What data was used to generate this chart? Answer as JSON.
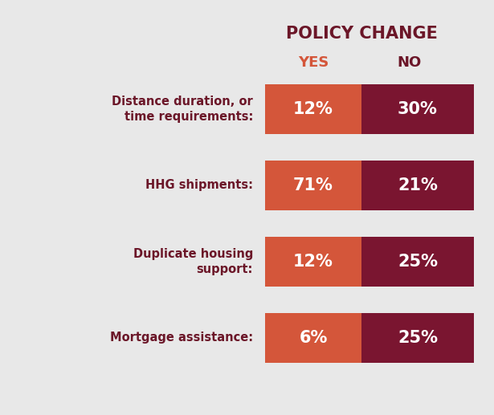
{
  "background_color": "#e8e8e8",
  "title_line1": "POLICY CHANGE",
  "title_line1_color": "#6b1628",
  "yes_label": "YES",
  "yes_label_color": "#d4563a",
  "no_label": "NO",
  "no_label_color": "#6b1628",
  "categories": [
    "Distance duration, or\ntime requirements:",
    "HHG shipments:",
    "Duplicate housing\nsupport:",
    "Mortgage assistance:"
  ],
  "yes_values": [
    12,
    71,
    12,
    6
  ],
  "no_values": [
    30,
    21,
    25,
    25
  ],
  "yes_color": "#d4563a",
  "no_color": "#7a1530",
  "label_color_left": "#6b1628",
  "text_color_white": "#ffffff",
  "figsize": [
    6.15,
    5.17
  ],
  "dpi": 100
}
